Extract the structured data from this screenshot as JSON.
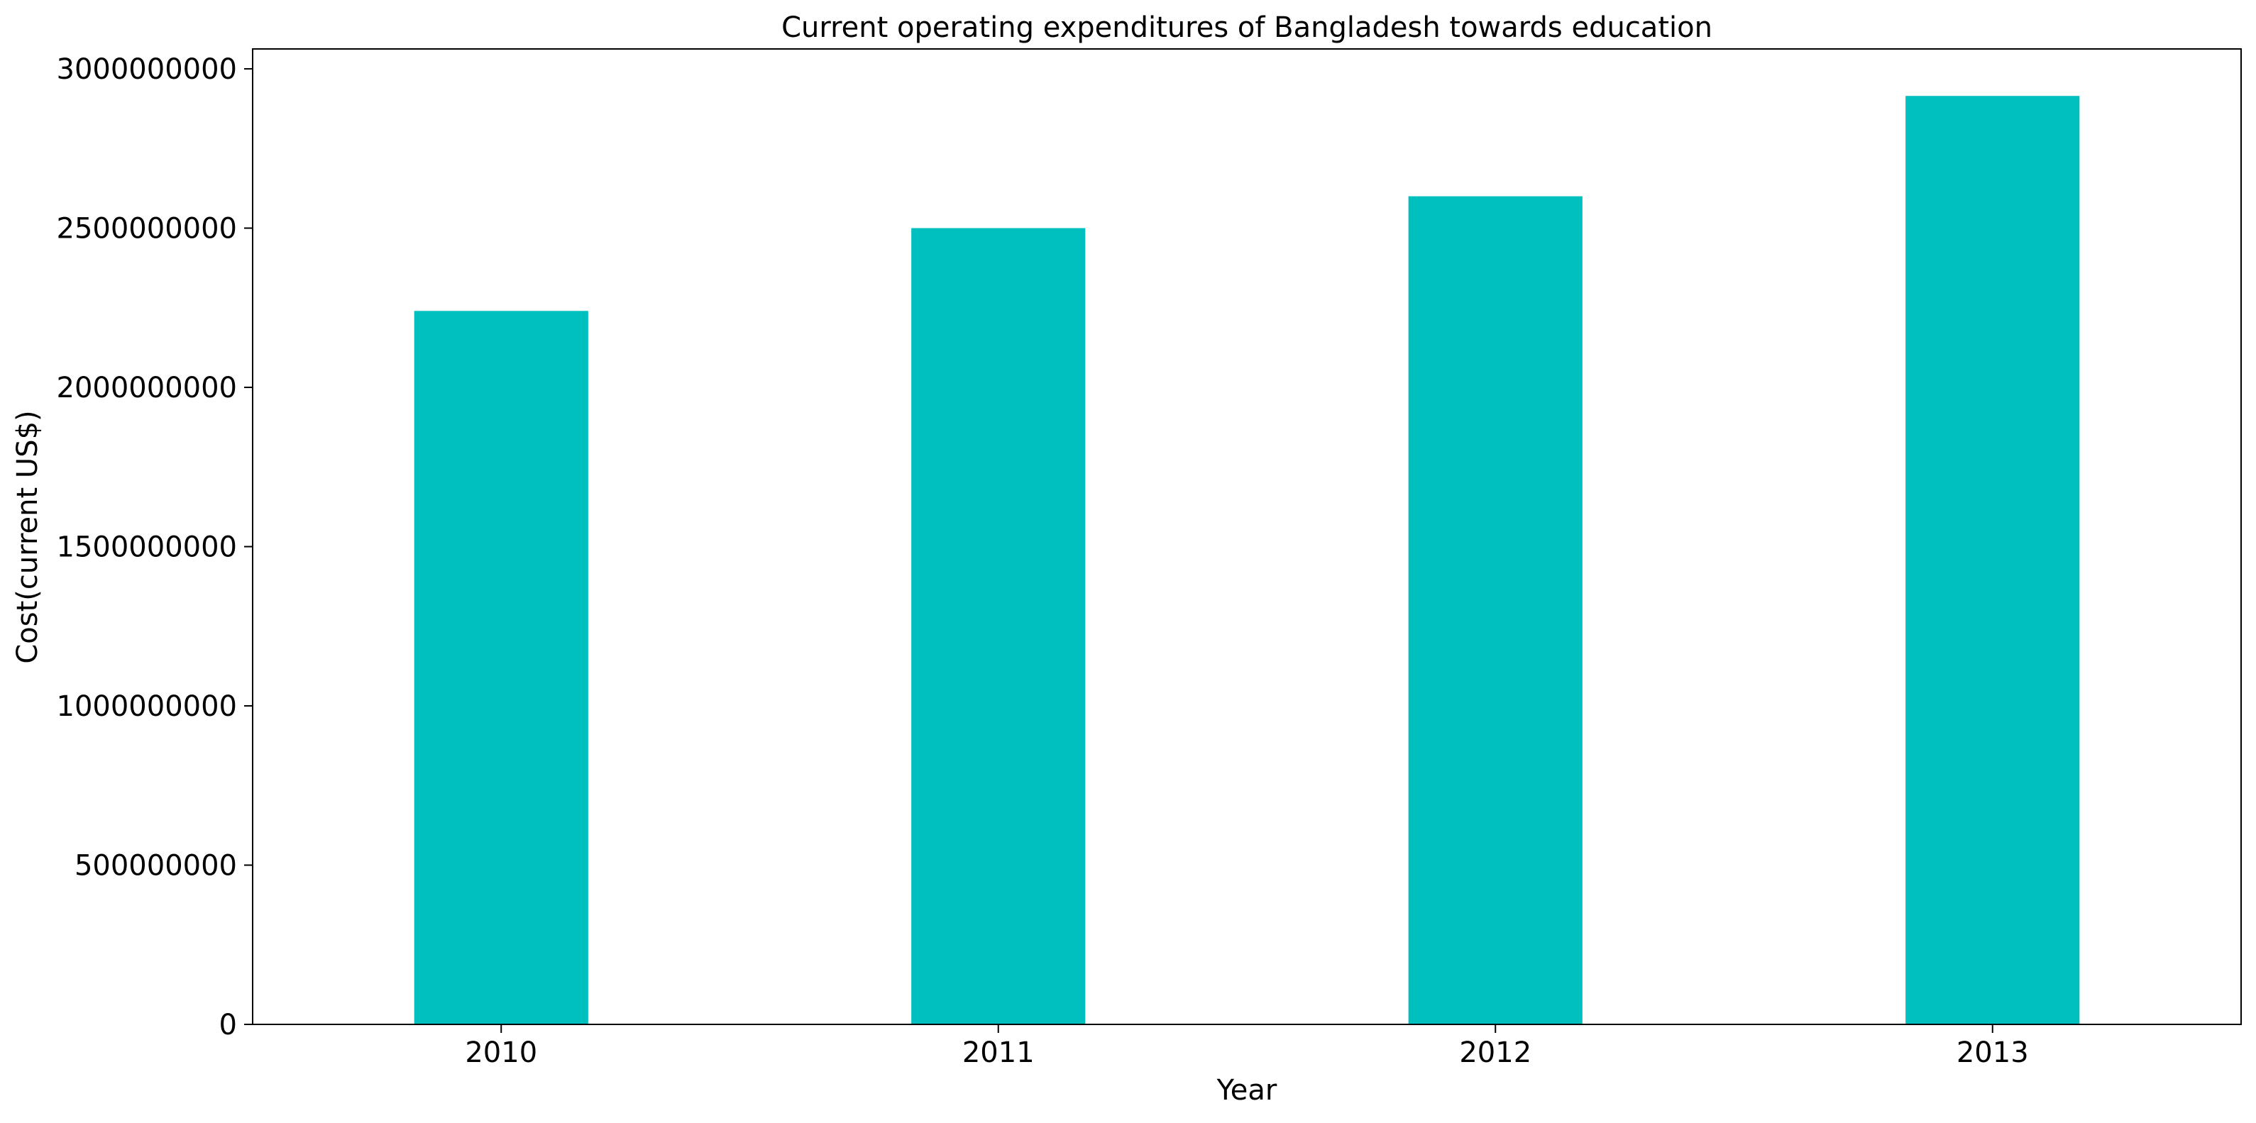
{
  "chart_data": {
    "type": "bar",
    "title": "Current operating expenditures of Bangladesh towards education",
    "xlabel": "Year",
    "ylabel": "Cost(current US$)",
    "categories": [
      "2010",
      "2011",
      "2012",
      "2013"
    ],
    "values": [
      2240000000,
      2500000000,
      2600000000,
      2915000000
    ],
    "ylim": [
      0,
      3062500000
    ],
    "yticks": [
      0,
      500000000,
      1000000000,
      1500000000,
      2000000000,
      2500000000,
      3000000000
    ],
    "ytick_labels": [
      "0",
      "500000000",
      "1000000000",
      "1500000000",
      "2000000000",
      "2500000000",
      "3000000000"
    ],
    "bar_color": "#00BFBF",
    "grid": false,
    "legend": "none"
  }
}
